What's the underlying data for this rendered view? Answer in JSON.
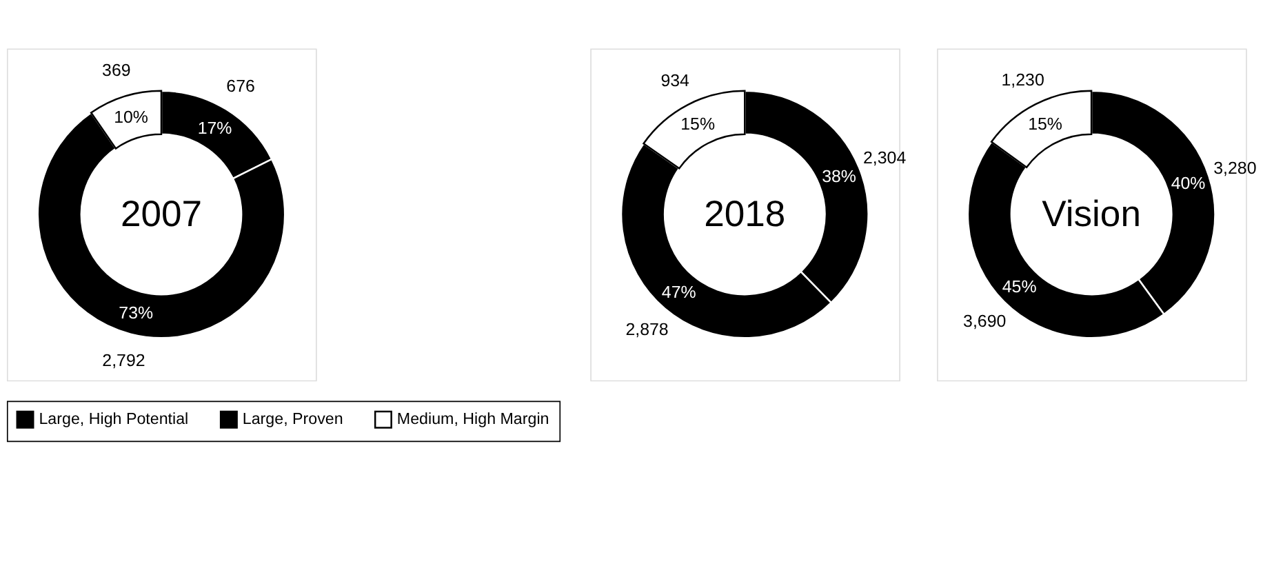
{
  "chart_data": [
    {
      "type": "donut",
      "title": "2007",
      "categories": [
        "Large, High Potential",
        "Large, Proven",
        "Medium, High Margin"
      ],
      "values": [
        676,
        2792,
        369
      ],
      "colors": [
        "#000000",
        "#000000",
        "#ffffff"
      ],
      "value_labels": [
        "676",
        "2,792",
        "369"
      ],
      "annotations": [
        "17%",
        "73%",
        "10%"
      ],
      "legend": "bottom"
    },
    {
      "type": "donut",
      "title": "2018",
      "categories": [
        null,
        null,
        null
      ],
      "values": [
        2304,
        2878,
        934
      ],
      "colors": [
        "#000000",
        "#000000",
        "#ffffff"
      ],
      "value_labels": [
        "2,304",
        "2,878",
        "934"
      ],
      "annotations": [
        "38%",
        "47%",
        "15%"
      ]
    },
    {
      "type": "donut",
      "title": "Vision",
      "categories": [
        null,
        null,
        null
      ],
      "values": [
        3280,
        3690,
        1230
      ],
      "colors": [
        "#000000",
        "#000000",
        "#ffffff"
      ],
      "value_labels": [
        "3,280",
        "3,690",
        "1,230"
      ],
      "annotations": [
        "40%",
        "45%",
        "15%"
      ]
    }
  ]
}
